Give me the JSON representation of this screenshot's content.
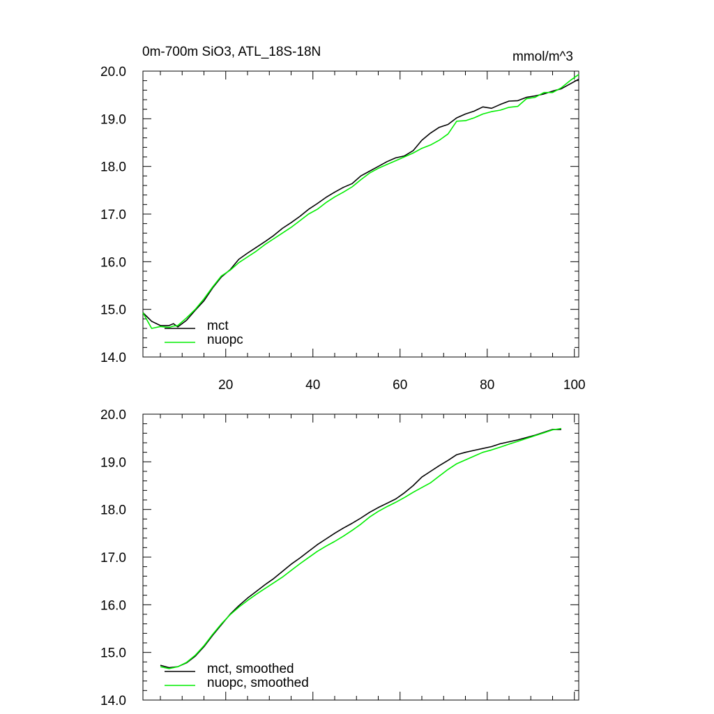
{
  "chart_data": [
    {
      "type": "line",
      "title": "0m-700m SiO3, ATL_18S-18N",
      "units": "mmol/m^3",
      "xlim": [
        1,
        101
      ],
      "ylim": [
        14.0,
        20.0
      ],
      "x_ticks": [
        20,
        40,
        60,
        80,
        100
      ],
      "x_tick_labels": [
        "20",
        "40",
        "60",
        "80",
        "100"
      ],
      "y_ticks": [
        14.0,
        15.0,
        16.0,
        17.0,
        18.0,
        19.0,
        20.0
      ],
      "y_tick_labels": [
        "14.0",
        "15.0",
        "16.0",
        "17.0",
        "18.0",
        "19.0",
        "20.0"
      ],
      "grid": false,
      "legend": "bottom-left",
      "series": [
        {
          "name": "mct",
          "color": "#000000",
          "x": [
            1,
            3,
            5,
            7,
            8,
            9,
            11,
            13,
            15,
            17,
            19,
            21,
            23,
            25,
            27,
            29,
            31,
            33,
            35,
            37,
            39,
            41,
            43,
            45,
            47,
            49,
            51,
            53,
            55,
            57,
            59,
            61,
            63,
            65,
            67,
            69,
            71,
            73,
            75,
            77,
            79,
            81,
            83,
            85,
            87,
            89,
            91,
            93,
            95,
            97,
            99,
            101
          ],
          "values": [
            14.93,
            14.75,
            14.66,
            14.66,
            14.7,
            14.63,
            14.77,
            14.98,
            15.18,
            15.45,
            15.68,
            15.83,
            16.05,
            16.18,
            16.3,
            16.42,
            16.55,
            16.7,
            16.82,
            16.95,
            17.1,
            17.22,
            17.35,
            17.46,
            17.56,
            17.64,
            17.8,
            17.9,
            18.0,
            18.1,
            18.18,
            18.22,
            18.33,
            18.55,
            18.7,
            18.82,
            18.88,
            19.02,
            19.1,
            19.16,
            19.25,
            19.22,
            19.3,
            19.37,
            19.38,
            19.45,
            19.48,
            19.52,
            19.58,
            19.63,
            19.73,
            19.83
          ]
        },
        {
          "name": "nuopc",
          "color": "#00ee00",
          "x": [
            1,
            3,
            5,
            7,
            8,
            9,
            11,
            13,
            15,
            17,
            19,
            21,
            23,
            25,
            27,
            29,
            31,
            33,
            35,
            37,
            39,
            41,
            43,
            45,
            47,
            49,
            51,
            53,
            55,
            57,
            59,
            61,
            63,
            65,
            67,
            69,
            71,
            73,
            75,
            77,
            79,
            81,
            83,
            85,
            87,
            89,
            91,
            93,
            95,
            97,
            99,
            101
          ],
          "values": [
            14.93,
            14.6,
            14.64,
            14.62,
            14.65,
            14.66,
            14.82,
            15.0,
            15.22,
            15.47,
            15.7,
            15.82,
            15.98,
            16.1,
            16.22,
            16.36,
            16.48,
            16.6,
            16.72,
            16.86,
            17.0,
            17.1,
            17.24,
            17.36,
            17.46,
            17.57,
            17.72,
            17.86,
            17.96,
            18.04,
            18.12,
            18.2,
            18.28,
            18.38,
            18.45,
            18.55,
            18.68,
            18.95,
            18.96,
            19.02,
            19.1,
            19.15,
            19.18,
            19.24,
            19.26,
            19.42,
            19.45,
            19.55,
            19.55,
            19.65,
            19.8,
            19.93
          ]
        }
      ]
    },
    {
      "type": "line",
      "xlim": [
        1,
        101
      ],
      "ylim": [
        14.0,
        20.0
      ],
      "x_ticks": [
        20,
        40,
        60,
        80,
        100
      ],
      "y_ticks": [
        14.0,
        15.0,
        16.0,
        17.0,
        18.0,
        19.0,
        20.0
      ],
      "y_tick_labels": [
        "14.0",
        "15.0",
        "16.0",
        "17.0",
        "18.0",
        "19.0",
        "20.0"
      ],
      "grid": false,
      "legend": "bottom-left",
      "series": [
        {
          "name": "mct, smoothed",
          "color": "#000000",
          "x": [
            5,
            7,
            9,
            11,
            13,
            15,
            17,
            19,
            21,
            23,
            25,
            27,
            29,
            31,
            33,
            35,
            37,
            39,
            41,
            43,
            45,
            47,
            49,
            51,
            53,
            55,
            57,
            59,
            61,
            63,
            65,
            67,
            69,
            71,
            73,
            75,
            77,
            79,
            81,
            83,
            85,
            87,
            89,
            91,
            93,
            95,
            97
          ],
          "values": [
            14.73,
            14.68,
            14.7,
            14.78,
            14.92,
            15.12,
            15.36,
            15.58,
            15.8,
            15.98,
            16.14,
            16.28,
            16.42,
            16.55,
            16.7,
            16.85,
            16.98,
            17.12,
            17.26,
            17.38,
            17.5,
            17.61,
            17.71,
            17.82,
            17.94,
            18.04,
            18.13,
            18.22,
            18.35,
            18.5,
            18.68,
            18.8,
            18.92,
            19.03,
            19.15,
            19.2,
            19.24,
            19.28,
            19.32,
            19.38,
            19.42,
            19.46,
            19.51,
            19.56,
            19.62,
            19.68,
            19.68
          ]
        },
        {
          "name": "nuopc, smoothed",
          "color": "#00ee00",
          "x": [
            5,
            7,
            9,
            11,
            13,
            15,
            17,
            19,
            21,
            23,
            25,
            27,
            29,
            31,
            33,
            35,
            37,
            39,
            41,
            43,
            45,
            47,
            49,
            51,
            53,
            55,
            57,
            59,
            61,
            63,
            65,
            67,
            69,
            71,
            73,
            75,
            77,
            79,
            81,
            83,
            85,
            87,
            89,
            91,
            93,
            95,
            97
          ],
          "values": [
            14.7,
            14.66,
            14.7,
            14.79,
            14.94,
            15.14,
            15.38,
            15.6,
            15.79,
            15.95,
            16.09,
            16.22,
            16.34,
            16.46,
            16.58,
            16.72,
            16.86,
            16.99,
            17.12,
            17.23,
            17.33,
            17.44,
            17.56,
            17.69,
            17.84,
            17.96,
            18.06,
            18.15,
            18.25,
            18.36,
            18.46,
            18.56,
            18.7,
            18.84,
            18.96,
            19.04,
            19.12,
            19.2,
            19.25,
            19.31,
            19.37,
            19.43,
            19.49,
            19.55,
            19.61,
            19.67,
            19.7
          ]
        }
      ]
    }
  ]
}
